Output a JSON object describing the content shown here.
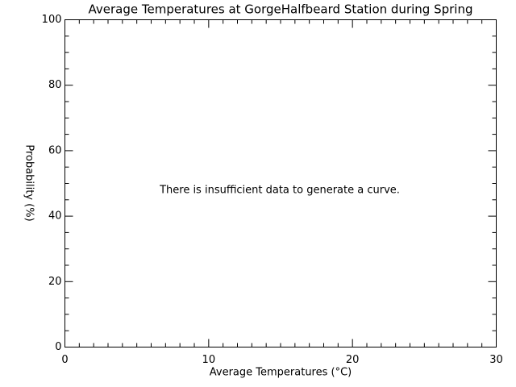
{
  "chart_data": {
    "type": "line",
    "title": "Average Temperatures at GorgeHalfbeard Station during Spring",
    "x_label": "Average Temperatures (°C)",
    "y_label": "Probability (%)",
    "annotation": "There is insufficient data to generate a curve.",
    "series": [],
    "xlim": [
      0,
      30
    ],
    "xticks": [
      0,
      10,
      20,
      30
    ],
    "ylim": [
      0,
      100
    ],
    "yticks": [
      0,
      20,
      40,
      60,
      80,
      100
    ]
  }
}
